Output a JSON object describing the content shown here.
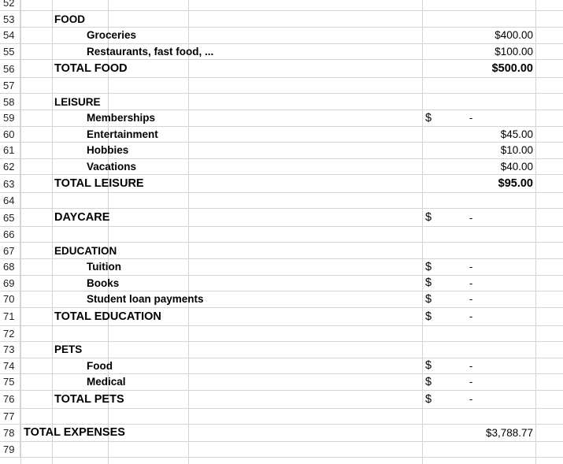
{
  "sheet": {
    "rows": [
      {
        "n": "52",
        "kind": "blank"
      },
      {
        "n": "53",
        "kind": "sec",
        "label": "FOOD"
      },
      {
        "n": "54",
        "kind": "item",
        "label": "Groceries",
        "amount": "$400.00"
      },
      {
        "n": "55",
        "kind": "item",
        "label": "Restaurants, fast food, ...",
        "amount": "$100.00"
      },
      {
        "n": "56",
        "kind": "total",
        "label": "TOTAL FOOD",
        "amount": "$500.00",
        "amount_bold": true
      },
      {
        "n": "57",
        "kind": "blank"
      },
      {
        "n": "58",
        "kind": "sec",
        "label": "LEISURE"
      },
      {
        "n": "59",
        "kind": "item",
        "label": "Memberships",
        "dollar": "$",
        "dash": "-"
      },
      {
        "n": "60",
        "kind": "item",
        "label": "Entertainment",
        "amount": "$45.00"
      },
      {
        "n": "61",
        "kind": "item",
        "label": "Hobbies",
        "amount": "$10.00"
      },
      {
        "n": "62",
        "kind": "item",
        "label": "Vacations",
        "amount": "$40.00"
      },
      {
        "n": "63",
        "kind": "total",
        "label": "TOTAL LEISURE",
        "amount": "$95.00",
        "amount_bold": true
      },
      {
        "n": "64",
        "kind": "blank"
      },
      {
        "n": "65",
        "kind": "total",
        "label": "DAYCARE",
        "dollar": "$",
        "dash": "-"
      },
      {
        "n": "66",
        "kind": "blank"
      },
      {
        "n": "67",
        "kind": "sec",
        "label": "EDUCATION"
      },
      {
        "n": "68",
        "kind": "item",
        "label": "Tuition",
        "dollar": "$",
        "dash": "-"
      },
      {
        "n": "69",
        "kind": "item",
        "label": "Books",
        "dollar": "$",
        "dash": "-"
      },
      {
        "n": "70",
        "kind": "item",
        "label": "Student loan payments",
        "dollar": "$",
        "dash": "-"
      },
      {
        "n": "71",
        "kind": "total",
        "label": "TOTAL EDUCATION",
        "dollar": "$",
        "dash": "-"
      },
      {
        "n": "72",
        "kind": "blank"
      },
      {
        "n": "73",
        "kind": "sec",
        "label": "PETS"
      },
      {
        "n": "74",
        "kind": "item",
        "label": "Food",
        "dollar": "$",
        "dash": "-"
      },
      {
        "n": "75",
        "kind": "item",
        "label": "Medical",
        "dollar": "$",
        "dash": "-"
      },
      {
        "n": "76",
        "kind": "total",
        "label": "TOTAL PETS",
        "dollar": "$",
        "dash": "-"
      },
      {
        "n": "77",
        "kind": "blank"
      },
      {
        "n": "78",
        "kind": "grand",
        "label": "TOTAL EXPENSES",
        "amount": "$3,788.77",
        "amount_bold": false
      },
      {
        "n": "79",
        "kind": "blank"
      }
    ]
  }
}
